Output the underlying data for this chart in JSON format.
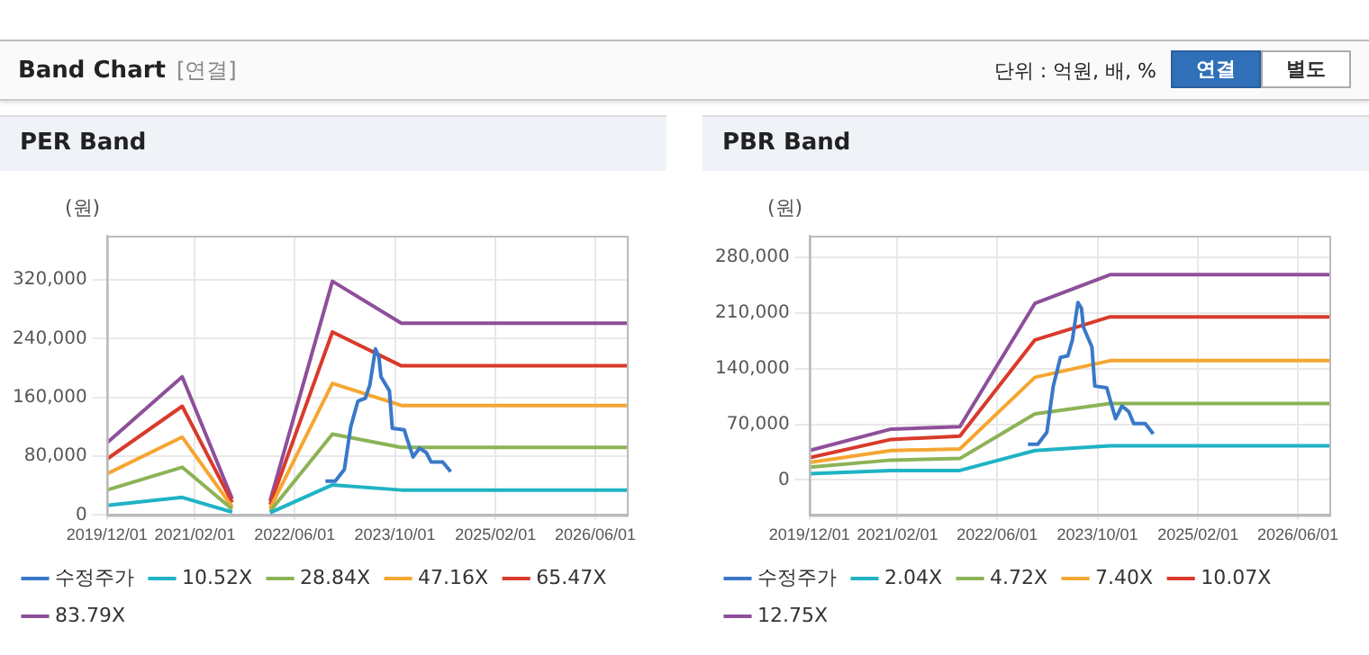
{
  "chart_data": [
    {
      "type": "other",
      "title": "Band Chart",
      "subtitle": "[연결]",
      "annotations": [
        "단위 : 억원, 배, %",
        "연결",
        "별도"
      ]
    },
    {
      "type": "line",
      "title": "PER Band",
      "ylabel": "(원)",
      "grid": true,
      "legend": "bottom",
      "xlim": [
        "2019-12-01",
        "2026-11-01"
      ],
      "xticks": [
        {
          "value": "2019-12-01",
          "label": "2019/12/01"
        },
        {
          "value": "2021-02-01",
          "label": "2021/02/01"
        },
        {
          "value": "2022-06-01",
          "label": "2022/06/01"
        },
        {
          "value": "2023-10-01",
          "label": "2023/10/01"
        },
        {
          "value": "2025-02-01",
          "label": "2025/02/01"
        },
        {
          "value": "2026-06-01",
          "label": "2026/06/01"
        }
      ],
      "ylim": [
        0,
        380000
      ],
      "yticks": [
        {
          "value": 0,
          "label": "0"
        },
        {
          "value": 80000,
          "label": "80,000"
        },
        {
          "value": 160000,
          "label": "160,000"
        },
        {
          "value": 240000,
          "label": "240,000"
        },
        {
          "value": 320000,
          "label": "320,000"
        }
      ],
      "series": [
        {
          "name": "수정주가",
          "color": "#3a78c9",
          "x": [
            "2022-10-28",
            "2022-12-15",
            "2023-01-28",
            "2023-02-28",
            "2023-04-04",
            "2023-05-10",
            "2023-06-01",
            "2023-06-28",
            "2023-07-15",
            "2023-07-25",
            "2023-09-04",
            "2023-09-18",
            "2023-11-15",
            "2023-11-28",
            "2023-12-28",
            "2024-01-28",
            "2024-03-01",
            "2024-03-25",
            "2024-05-20",
            "2024-06-28"
          ],
          "values": [
            46000,
            46000,
            62000,
            120000,
            155000,
            159000,
            177000,
            226000,
            215000,
            188000,
            169000,
            118000,
            116000,
            104000,
            79000,
            91000,
            85000,
            72000,
            72000,
            59000
          ]
        },
        {
          "name": "10.52X",
          "color": "#1fb3c4",
          "x": [
            "2019-12-01",
            "2020-12-01",
            "2021-08-01",
            "2021-11-01",
            "2022-02-01",
            "2022-12-01",
            "2023-11-01",
            "2026-11-01"
          ],
          "values": [
            13000,
            24000,
            4000,
            null,
            3000,
            41000,
            34000,
            34000
          ]
        },
        {
          "name": "28.84X",
          "color": "#8cb356",
          "x": [
            "2019-12-01",
            "2020-12-01",
            "2021-08-01",
            "2021-11-01",
            "2022-02-01",
            "2022-12-01",
            "2023-11-01",
            "2026-11-01"
          ],
          "values": [
            34000,
            65000,
            8000,
            null,
            5000,
            110000,
            92000,
            92000
          ]
        },
        {
          "name": "47.16X",
          "color": "#f5a631",
          "x": [
            "2019-12-01",
            "2020-12-01",
            "2021-08-01",
            "2021-11-01",
            "2022-02-01",
            "2022-12-01",
            "2023-11-01",
            "2026-11-01"
          ],
          "values": [
            56000,
            106000,
            11000,
            null,
            9000,
            179000,
            149000,
            149000
          ]
        },
        {
          "name": "65.47X",
          "color": "#d93a2b",
          "x": [
            "2019-12-01",
            "2020-12-01",
            "2021-08-01",
            "2021-11-01",
            "2022-02-01",
            "2022-12-01",
            "2023-11-01",
            "2026-11-01"
          ],
          "values": [
            76000,
            148000,
            17000,
            null,
            14000,
            249000,
            203000,
            203000
          ]
        },
        {
          "name": "83.79X",
          "color": "#8e4f9a",
          "x": [
            "2019-12-01",
            "2020-12-01",
            "2021-08-01",
            "2021-11-01",
            "2022-02-01",
            "2022-12-01",
            "2023-11-01",
            "2026-11-01"
          ],
          "values": [
            98000,
            188000,
            22000,
            null,
            19000,
            318000,
            261000,
            261000
          ]
        }
      ]
    },
    {
      "type": "line",
      "title": "PBR Band",
      "ylabel": "(원)",
      "grid": true,
      "legend": "bottom",
      "xlim": [
        "2019-12-01",
        "2026-11-01"
      ],
      "xticks": [
        {
          "value": "2019-12-01",
          "label": "2019/12/01"
        },
        {
          "value": "2021-02-01",
          "label": "2021/02/01"
        },
        {
          "value": "2022-06-01",
          "label": "2022/06/01"
        },
        {
          "value": "2023-10-01",
          "label": "2023/10/01"
        },
        {
          "value": "2025-02-01",
          "label": "2025/02/01"
        },
        {
          "value": "2026-06-01",
          "label": "2026/06/01"
        }
      ],
      "ylim": [
        -44000,
        307000
      ],
      "yticks": [
        {
          "value": 0,
          "label": "0"
        },
        {
          "value": 70000,
          "label": "70,000"
        },
        {
          "value": 140000,
          "label": "140,000"
        },
        {
          "value": 210000,
          "label": "210,000"
        },
        {
          "value": 280000,
          "label": "280,000"
        }
      ],
      "series": [
        {
          "name": "수정주가",
          "color": "#3a78c9",
          "x": [
            "2022-10-28",
            "2022-12-15",
            "2023-01-28",
            "2023-02-28",
            "2023-04-04",
            "2023-05-10",
            "2023-06-01",
            "2023-06-28",
            "2023-07-15",
            "2023-07-25",
            "2023-09-04",
            "2023-09-18",
            "2023-11-15",
            "2023-11-28",
            "2023-12-28",
            "2024-01-28",
            "2024-03-01",
            "2024-03-25",
            "2024-05-20",
            "2024-06-28"
          ],
          "values": [
            45000,
            45000,
            60000,
            118000,
            154000,
            156000,
            176000,
            223000,
            216000,
            192000,
            167000,
            118000,
            116000,
            104000,
            77000,
            93000,
            86000,
            71000,
            71000,
            58000
          ]
        },
        {
          "name": "2.04X",
          "color": "#1fb3c4",
          "x": [
            "2019-12-01",
            "2021-01-01",
            "2021-12-01",
            "2022-12-01",
            "2023-12-01",
            "2026-11-01"
          ],
          "values": [
            8000,
            12000,
            12000,
            37000,
            43000,
            43000
          ]
        },
        {
          "name": "4.72X",
          "color": "#8cb356",
          "x": [
            "2019-12-01",
            "2021-01-01",
            "2021-12-01",
            "2022-12-01",
            "2023-12-01",
            "2026-11-01"
          ],
          "values": [
            16000,
            25000,
            27000,
            83000,
            96000,
            96000
          ]
        },
        {
          "name": "7.40X",
          "color": "#f5a631",
          "x": [
            "2019-12-01",
            "2021-01-01",
            "2021-12-01",
            "2022-12-01",
            "2023-12-01",
            "2026-11-01"
          ],
          "values": [
            22000,
            37000,
            39000,
            129000,
            150000,
            150000
          ]
        },
        {
          "name": "10.07X",
          "color": "#d93a2b",
          "x": [
            "2019-12-01",
            "2021-01-01",
            "2021-12-01",
            "2022-12-01",
            "2023-12-01",
            "2026-11-01"
          ],
          "values": [
            28000,
            51000,
            55000,
            176000,
            205000,
            205000
          ]
        },
        {
          "name": "12.75X",
          "color": "#8e4f9a",
          "x": [
            "2019-12-01",
            "2021-01-01",
            "2021-12-01",
            "2022-12-01",
            "2023-12-01",
            "2026-11-01"
          ],
          "values": [
            37000,
            64000,
            67000,
            222000,
            258000,
            258000
          ]
        }
      ]
    }
  ]
}
